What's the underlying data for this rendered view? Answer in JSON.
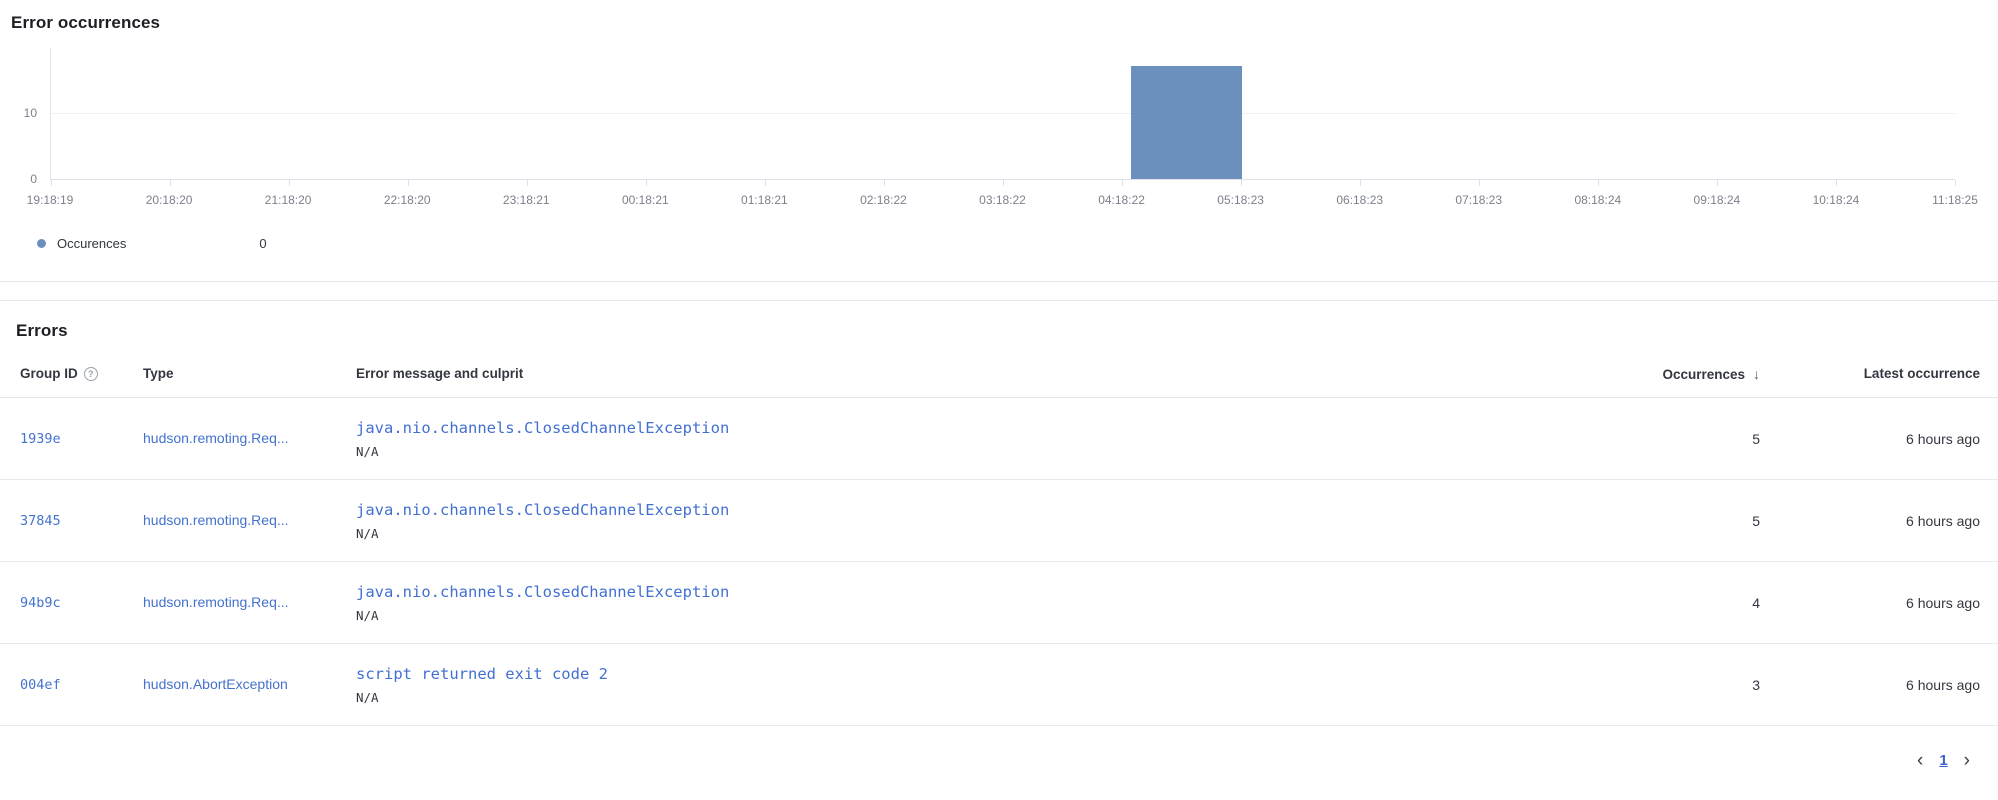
{
  "colors": {
    "bar": "#6b90bd",
    "link_blue": "#4472cf",
    "message_blue": "#4270d2",
    "text": "#343741",
    "muted": "#7b818c"
  },
  "icons": {
    "info": "?",
    "sort_desc": "↓",
    "prev": "‹",
    "next": "›"
  },
  "chart_data": {
    "type": "bar",
    "title": "Error occurrences",
    "xlabel": "",
    "ylabel": "",
    "ylim": [
      0,
      19.7
    ],
    "grid": "horizontal",
    "x_tick_labels": [
      "19:18:19",
      "20:18:20",
      "21:18:20",
      "22:18:20",
      "23:18:21",
      "00:18:21",
      "01:18:21",
      "02:18:22",
      "03:18:22",
      "04:18:22",
      "05:18:23",
      "06:18:23",
      "07:18:23",
      "08:18:24",
      "09:18:24",
      "10:18:24",
      "11:18:25"
    ],
    "y_ticks": [
      {
        "label": "0",
        "value": 0
      },
      {
        "label": "10",
        "value": 10
      }
    ],
    "series": [
      {
        "name": "Occurences",
        "color": "#6b90bd",
        "bars": [
          {
            "from_tick": 9,
            "to_tick": 10,
            "value": 17
          }
        ]
      }
    ],
    "legend": {
      "position": "bottom",
      "entries": [
        {
          "label": "Occurences",
          "value": "0"
        }
      ]
    }
  },
  "errors_table": {
    "title": "Errors",
    "columns": [
      {
        "label": "Group ID",
        "has_info_icon": true
      },
      {
        "label": "Type"
      },
      {
        "label": "Error message and culprit"
      },
      {
        "label": "Occurrences",
        "sort": "desc"
      },
      {
        "label": "Latest occurrence"
      }
    ],
    "rows": [
      {
        "group_id": "1939e",
        "type": "hudson.remoting.Req...",
        "message": "java.nio.channels.ClosedChannelException",
        "culprit": "N/A",
        "occurrences": "5",
        "latest": "6 hours ago"
      },
      {
        "group_id": "37845",
        "type": "hudson.remoting.Req...",
        "message": "java.nio.channels.ClosedChannelException",
        "culprit": "N/A",
        "occurrences": "5",
        "latest": "6 hours ago"
      },
      {
        "group_id": "94b9c",
        "type": "hudson.remoting.Req...",
        "message": "java.nio.channels.ClosedChannelException",
        "culprit": "N/A",
        "occurrences": "4",
        "latest": "6 hours ago"
      },
      {
        "group_id": "004ef",
        "type": "hudson.AbortException",
        "message": "script returned exit code 2",
        "culprit": "N/A",
        "occurrences": "3",
        "latest": "6 hours ago"
      }
    ],
    "pagination": {
      "page": "1"
    }
  }
}
